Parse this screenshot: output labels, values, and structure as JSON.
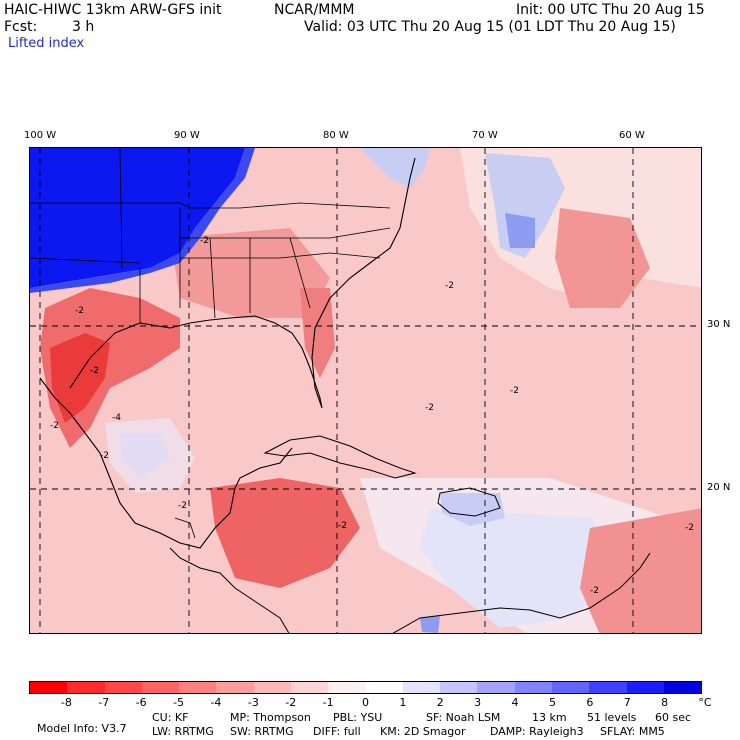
{
  "header": {
    "model": "HAIC-HIWC 13km ARW-GFS init",
    "org": "NCAR/MMM",
    "init": "Init: 00 UTC Thu 20 Aug 15",
    "fcst_label": "Fcst:",
    "fcst_value": "3 h",
    "valid": "Valid: 03 UTC Thu 20 Aug 15 (01 LDT Thu 20 Aug 15)",
    "field": "Lifted index"
  },
  "map": {
    "longitude_labels": [
      "100 W",
      "90 W",
      "80 W",
      "70 W",
      "60 W"
    ],
    "latitude_labels": [
      "30 N",
      "20 N"
    ],
    "contour_labels": [
      "-2",
      "-2",
      "-2",
      "-2",
      "-4",
      "-2",
      "-2",
      "-2",
      "-2",
      "-2",
      "-2",
      "-2",
      "-2"
    ]
  },
  "colorbar": {
    "tick_labels": [
      "-8",
      "-7",
      "-6",
      "-5",
      "-4",
      "-3",
      "-2",
      "-1",
      "0",
      "1",
      "2",
      "3",
      "4",
      "5",
      "6",
      "7",
      "8"
    ],
    "unit": "°C",
    "colors": [
      "#ff0000",
      "#ff2a2a",
      "#ff4747",
      "#ff6464",
      "#ff8080",
      "#ff9c9c",
      "#ffb8b8",
      "#ffd4d4",
      "#fff0f0",
      "#ffffff",
      "#e4e4ff",
      "#c4c4ff",
      "#a4a4ff",
      "#8484ff",
      "#6464ff",
      "#4040ff",
      "#1c1cff",
      "#0000e0"
    ]
  },
  "footer": {
    "line1": [
      "Model Info: V3.7",
      "CU: KF",
      "MP: Thompson",
      "PBL: YSU",
      "SF: Noah LSM",
      "13 km",
      "51 levels",
      "60 sec"
    ],
    "line2": [
      "LW: RRTMG",
      "SW: RRTMG",
      "DIFF: full",
      "KM: 2D Smagor",
      "DAMP: Rayleigh3",
      "SFLAY: MM5"
    ]
  }
}
